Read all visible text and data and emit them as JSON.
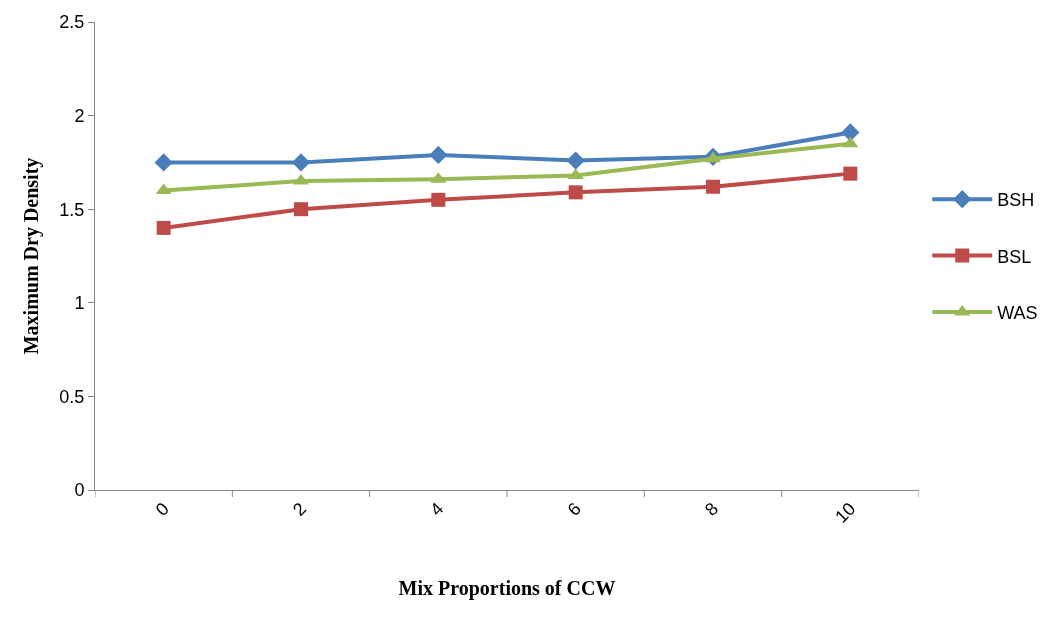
{
  "chart_data": {
    "type": "line",
    "xlabel": "Mix Proportions of CCW",
    "ylabel": "Maximum Dry Density",
    "categories": [
      "0",
      "2",
      "4",
      "6",
      "8",
      "10"
    ],
    "series": [
      {
        "name": "BSH",
        "color": "#4a7ebb",
        "values": [
          1.75,
          1.75,
          1.79,
          1.76,
          1.78,
          1.91
        ],
        "marker": "diamond"
      },
      {
        "name": "BSL",
        "color": "#be4b48",
        "values": [
          1.4,
          1.5,
          1.55,
          1.59,
          1.62,
          1.69
        ],
        "marker": "square"
      },
      {
        "name": "WAS",
        "color": "#98b954",
        "values": [
          1.6,
          1.65,
          1.66,
          1.68,
          1.77,
          1.85
        ],
        "marker": "triangle"
      }
    ],
    "ylim": [
      0,
      2.5
    ],
    "yticks": [
      0,
      0.5,
      1,
      1.5,
      2,
      2.5
    ],
    "legend": "right",
    "line_style": "solid"
  }
}
